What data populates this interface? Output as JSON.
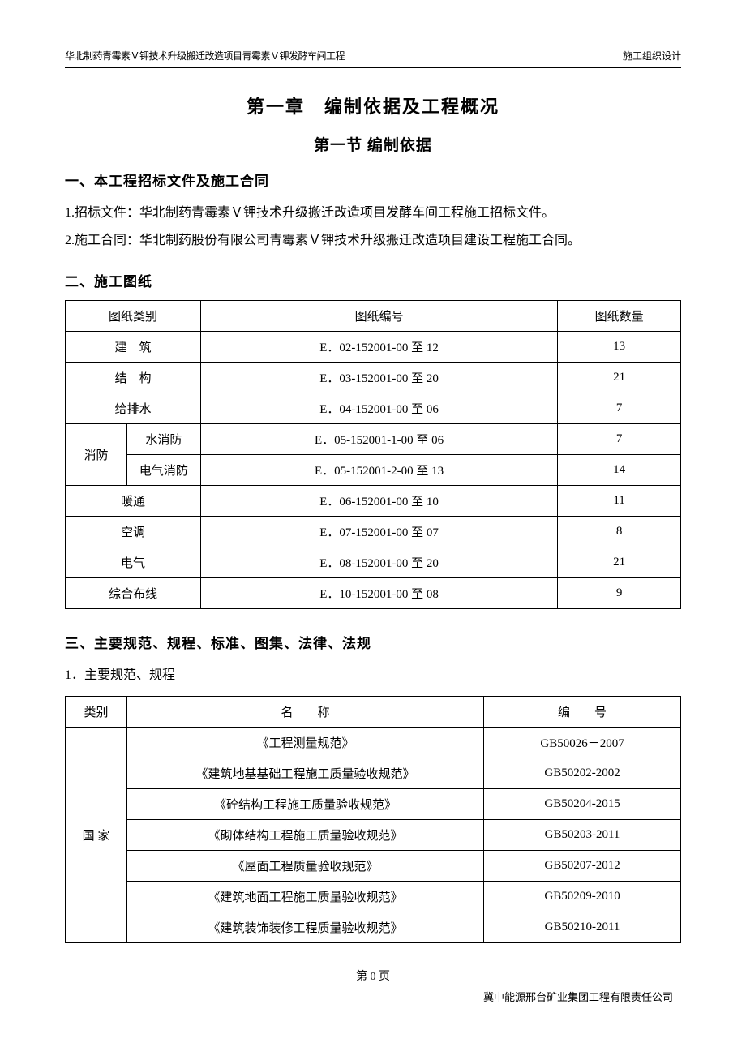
{
  "header": {
    "left": "华北制药青霉素Ｖ钾技术升级搬迁改造项目青霉素Ｖ钾发酵车间工程",
    "right": "施工组织设计"
  },
  "chapter_title": "第一章　编制依据及工程概况",
  "section_title": "第一节 编制依据",
  "subheading1": "一、本工程招标文件及施工合同",
  "para1": "1.招标文件：华北制药青霉素Ｖ钾技术升级搬迁改造项目发酵车间工程施工招标文件。",
  "para2": "2.施工合同：华北制药股份有限公司青霉素Ｖ钾技术升级搬迁改造项目建设工程施工合同。",
  "subheading2": "二、施工图纸",
  "drawings_table": {
    "headers": [
      "图纸类别",
      "图纸编号",
      "图纸数量"
    ],
    "rows": [
      {
        "cat": "建　筑",
        "code": "E．02-152001-00 至 12",
        "qty": "13",
        "merged": true
      },
      {
        "cat": "结　构",
        "code": "E．03-152001-00 至 20",
        "qty": "21",
        "merged": true
      },
      {
        "cat": "给排水",
        "code": "E．04-152001-00 至 06",
        "qty": "7",
        "merged": true
      },
      {
        "cat_main": "消防",
        "cat_sub": "水消防",
        "code": "E．05-152001-1-00 至 06",
        "qty": "7",
        "rowspan": 2
      },
      {
        "cat_sub": "电气消防",
        "code": "E．05-152001-2-00 至 13",
        "qty": "14"
      },
      {
        "cat": "暖通",
        "code": "E．06-152001-00 至 10",
        "qty": "11",
        "merged": true
      },
      {
        "cat": "空调",
        "code": "E．07-152001-00 至 07",
        "qty": "8",
        "merged": true
      },
      {
        "cat": "电气",
        "code": "E．08-152001-00 至 20",
        "qty": "21",
        "merged": true
      },
      {
        "cat": "综合布线",
        "code": "E．10-152001-00 至 08",
        "qty": "9",
        "merged": true
      }
    ]
  },
  "subheading3": "三、主要规范、规程、标准、图集、法律、法规",
  "para3": "1．主要规范、规程",
  "standards_table": {
    "headers": [
      "类别",
      "名　　称",
      "编　　号"
    ],
    "category": "国 家",
    "rows": [
      {
        "name": "《工程测量规范》",
        "code": "GB50026－2007"
      },
      {
        "name": "《建筑地基基础工程施工质量验收规范》",
        "code": "GB50202-2002"
      },
      {
        "name": "《砼结构工程施工质量验收规范》",
        "code": "GB50204-2015"
      },
      {
        "name": "《砌体结构工程施工质量验收规范》",
        "code": "GB50203-2011"
      },
      {
        "name": "《屋面工程质量验收规范》",
        "code": "GB50207-2012"
      },
      {
        "name": "《建筑地面工程施工质量验收规范》",
        "code": "GB50209-2010"
      },
      {
        "name": "《建筑装饰装修工程质量验收规范》",
        "code": "GB50210-2011"
      }
    ]
  },
  "footer": {
    "page": "第 0 页",
    "company": "冀中能源邢台矿业集团工程有限责任公司"
  }
}
